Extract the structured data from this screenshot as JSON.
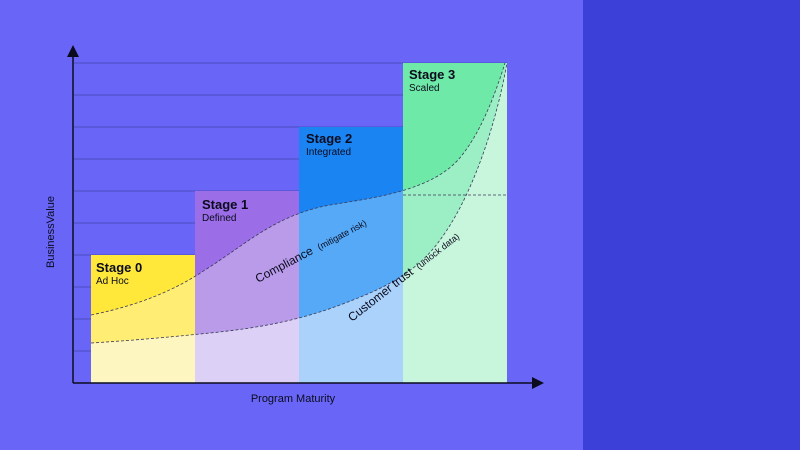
{
  "axes": {
    "y_label": "BusinessValue",
    "x_label": "Program Maturity"
  },
  "stages": [
    {
      "title": "Stage 0",
      "subtitle": "Ad Hoc",
      "color": "#ffe83a",
      "light": "#fdf6c0"
    },
    {
      "title": "Stage 1",
      "subtitle": "Defined",
      "color": "#9b6de6",
      "light": "#ddd0f7"
    },
    {
      "title": "Stage 2",
      "subtitle": "Integrated",
      "color": "#1a84f2",
      "light": "#aad2fb"
    },
    {
      "title": "Stage 3",
      "subtitle": "Scaled",
      "color": "#6ee9a7",
      "light": "#c7f6dc"
    }
  ],
  "curves": [
    {
      "main": "Compliance",
      "note": "(mitigate risk)"
    },
    {
      "main": "Customer trust",
      "note": "(unlock data)"
    }
  ],
  "colors": {
    "background": "#6966f7",
    "side_panel": "#3d3fd9",
    "axis": "#0b0b1e"
  }
}
